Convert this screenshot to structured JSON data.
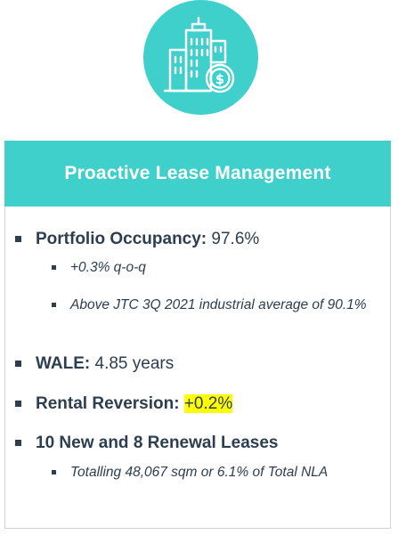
{
  "icon": {
    "name": "buildings-dollar-icon",
    "circle_color": "#40d0cc"
  },
  "card": {
    "title": "Proactive Lease Management",
    "header_color": "#40d0cc",
    "items": [
      {
        "label": "Portfolio Occupancy:",
        "value": "97.6%",
        "sub": [
          "+0.3% q-o-q",
          "Above JTC 3Q 2021 industrial average of 90.1%"
        ]
      },
      {
        "label": "WALE:",
        "value": "4.85 years",
        "sub": []
      },
      {
        "label": "Rental Reversion:",
        "value": "+0.2%",
        "highlight": "#ffff00",
        "sub": []
      },
      {
        "label": "10 New and 8 Renewal Leases",
        "value": "",
        "sub": [
          "Totalling 48,067 sqm or 6.1% of Total NLA"
        ]
      }
    ]
  }
}
